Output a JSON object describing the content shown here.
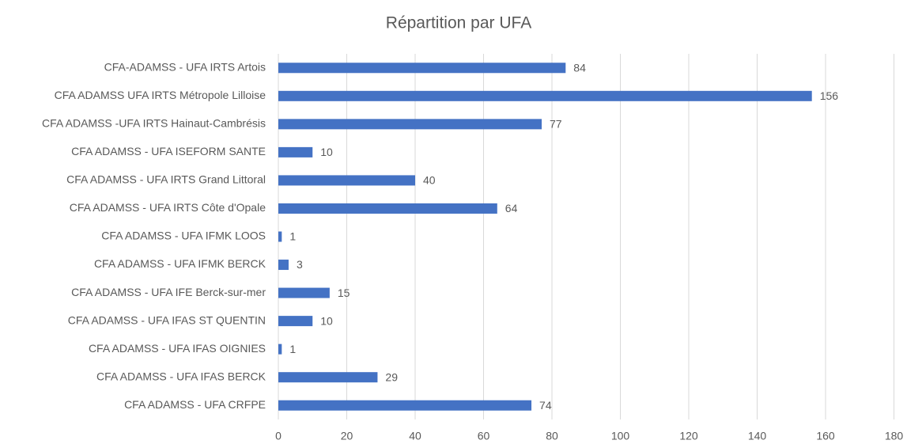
{
  "chart_data": {
    "type": "barh",
    "title": "Répartition par UFA",
    "categories": [
      "CFA-ADAMSS - UFA IRTS Artois",
      "CFA ADAMSS UFA IRTS Métropole Lilloise",
      "CFA ADAMSS -UFA IRTS Hainaut-Cambrésis",
      "CFA ADAMSS - UFA ISEFORM SANTE",
      "CFA ADAMSS - UFA IRTS Grand Littoral",
      "CFA ADAMSS - UFA IRTS Côte d'Opale",
      "CFA ADAMSS - UFA IFMK LOOS",
      "CFA ADAMSS - UFA IFMK BERCK",
      "CFA ADAMSS - UFA IFE Berck-sur-mer",
      "CFA ADAMSS - UFA IFAS ST QUENTIN",
      "CFA ADAMSS - UFA IFAS OIGNIES",
      "CFA ADAMSS - UFA IFAS BERCK",
      "CFA ADAMSS - UFA CRFPE"
    ],
    "values": [
      84,
      156,
      77,
      10,
      40,
      64,
      1,
      3,
      15,
      10,
      1,
      29,
      74
    ],
    "color": "#4472c4",
    "xlim": [
      0,
      180
    ],
    "xticks": [
      0,
      20,
      40,
      60,
      80,
      100,
      120,
      140,
      160,
      180
    ],
    "grid": true
  }
}
